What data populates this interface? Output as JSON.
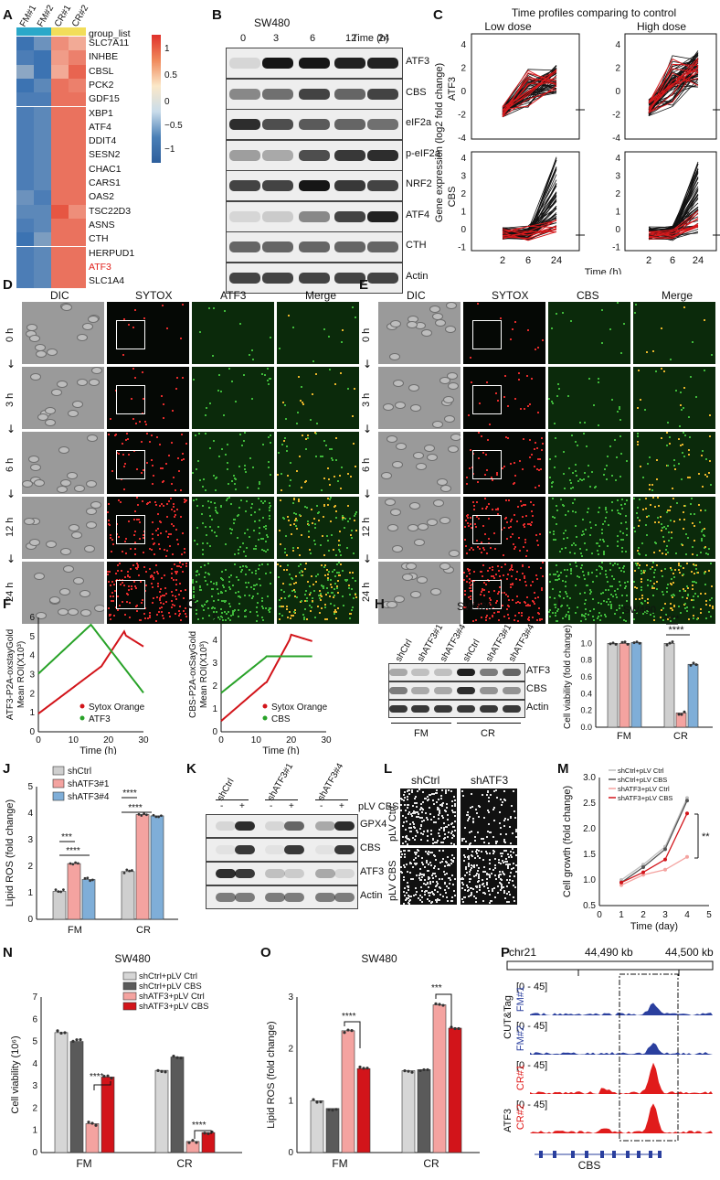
{
  "panels": {
    "A": "A",
    "B": "B",
    "C": "C",
    "D": "D",
    "E": "E",
    "F": "F",
    "G": "G",
    "H": "H",
    "I": "I",
    "J": "J",
    "K": "K",
    "L": "L",
    "M": "M",
    "N": "N",
    "O": "O",
    "P": "P"
  },
  "heatmap": {
    "columns": [
      "FM#1",
      "FM#2",
      "CR#1",
      "CR#2"
    ],
    "group_label": "group_list",
    "genes": [
      "SLC7A11",
      "INHBE",
      "CBSL",
      "PCK2",
      "GDF15",
      "XBP1",
      "ATF4",
      "DDIT4",
      "SESN2",
      "CHAC1",
      "CARS1",
      "OAS2",
      "TSC22D3",
      "ASNS",
      "CTH",
      "HERPUD1",
      "ATF3",
      "SLC1A4"
    ],
    "highlight_gene": "ATF3",
    "highlight_color": "#e0201b",
    "legend_ticks": [
      "1",
      "0.5",
      "0",
      "−0.5",
      "−1"
    ],
    "values": [
      [
        -1.2,
        -0.9,
        0.7,
        0.5
      ],
      [
        -1.1,
        -1.2,
        0.6,
        0.8
      ],
      [
        -0.7,
        -1.2,
        0.5,
        1.0
      ],
      [
        -1.2,
        -1.0,
        0.9,
        0.8
      ],
      [
        -1.1,
        -1.1,
        0.9,
        0.9
      ],
      [
        -1.1,
        -1.0,
        0.9,
        0.9
      ],
      [
        -1.1,
        -1.0,
        0.9,
        0.9
      ],
      [
        -1.1,
        -1.0,
        0.9,
        0.9
      ],
      [
        -1.1,
        -1.0,
        0.9,
        0.9
      ],
      [
        -1.1,
        -1.0,
        0.9,
        0.9
      ],
      [
        -1.1,
        -1.0,
        0.9,
        0.9
      ],
      [
        -0.9,
        -1.1,
        0.9,
        0.9
      ],
      [
        -1.0,
        -1.0,
        1.1,
        0.7
      ],
      [
        -1.1,
        -1.0,
        0.9,
        0.9
      ],
      [
        -1.2,
        -0.8,
        0.9,
        0.9
      ],
      [
        -1.1,
        -1.0,
        0.9,
        0.9
      ],
      [
        -1.1,
        -1.0,
        0.9,
        0.9
      ],
      [
        -1.1,
        -1.0,
        0.9,
        0.9
      ]
    ]
  },
  "blotB": {
    "cell_line": "SW480",
    "time_label": "Time (h)",
    "times": [
      "0",
      "3",
      "6",
      "12",
      "24"
    ],
    "proteins": [
      "ATF3",
      "CBS",
      "eIF2a",
      "p-eIF2a",
      "NRF2",
      "ATF4",
      "CTH",
      "Actin"
    ]
  },
  "panelC": {
    "title": "Time profiles comparing to control",
    "low": "Low dose",
    "high": "High dose",
    "ylabel": "Gene expression (log2 fold change)",
    "top_gene": "ATF3",
    "bottom_gene": "CBS",
    "xlabel": "Time (h)",
    "x_ticks": [
      "2",
      "6",
      "24"
    ],
    "top_yticks": [
      "4",
      "2",
      "0",
      "-2",
      "-4"
    ],
    "bottom_yticks": [
      "4",
      "3",
      "2",
      "1",
      "0",
      "-1"
    ]
  },
  "panelD": {
    "headers": [
      "DIC",
      "SYTOX",
      "ATF3",
      "Merge"
    ],
    "rows": [
      "0 h",
      "3 h",
      "6 h",
      "12 h",
      "24 h"
    ]
  },
  "panelE": {
    "headers": [
      "DIC",
      "SYTOX",
      "CBS",
      "Merge"
    ],
    "rows": [
      "0 h",
      "3 h",
      "6 h",
      "12 h",
      "24 h"
    ]
  },
  "panelF": {
    "ylabel1": "ATF3-P2A-oxstayGold",
    "ylabel2": "Mean ROI(X10³)",
    "xlabel": "Time (h)",
    "legend": [
      "Sytox Orange",
      "ATF3"
    ],
    "colors": [
      "#d2141a",
      "#28a228"
    ],
    "yticks": [
      "6",
      "5",
      "4",
      "3",
      "2",
      "1",
      "0"
    ],
    "xticks": [
      "0",
      "10",
      "20",
      "30"
    ]
  },
  "panelG": {
    "ylabel1": "CBS-P2A-oxSayGold",
    "ylabel2": "Mean ROI(X10³)",
    "xlabel": "Time (h)",
    "legend": [
      "Sytox Orange",
      "CBS"
    ],
    "yticks": [
      "5",
      "4",
      "3",
      "2",
      "1",
      "0"
    ],
    "xticks": [
      "0",
      "10",
      "20",
      "30"
    ]
  },
  "blotH": {
    "cell_line": "SW480",
    "lanes": [
      "shCtrl",
      "shATF3#1",
      "shATF3#4",
      "shCtrl",
      "shATF3#1",
      "shATF3#4"
    ],
    "proteins": [
      "ATF3",
      "CBS",
      "Actin"
    ],
    "groups": [
      "FM",
      "CR"
    ]
  },
  "panelI": {
    "title": "SW480",
    "ylabel": "Cell viability (fold change)",
    "groups": [
      "FM",
      "CR"
    ],
    "yticks": [
      "1.0",
      "0.8",
      "0.6",
      "0.4",
      "0.2",
      "0.0"
    ],
    "sig": [
      "****",
      "****"
    ]
  },
  "panelJ": {
    "ylabel": "Lipid ROS (fold change)",
    "legend": [
      "shCtrl",
      "shATF3#1",
      "shATF3#4"
    ],
    "groups": [
      "FM",
      "CR"
    ],
    "yticks": [
      "5",
      "4",
      "3",
      "2",
      "1",
      "0"
    ],
    "sig": [
      "****",
      "****",
      "***",
      "****"
    ]
  },
  "blotK": {
    "lanes": [
      "shCtrl",
      "shATF3#1",
      "shATF3#4"
    ],
    "signs": [
      "-",
      "+",
      "-",
      "+",
      "-",
      "+"
    ],
    "plv": "pLV CBS",
    "proteins": [
      "GPX4",
      "CBS",
      "ATF3",
      "Actin"
    ]
  },
  "panelL": {
    "cols": [
      "shCtrl",
      "shATF3"
    ],
    "rows": [
      "pLV Ctrl",
      "pLV CBS"
    ]
  },
  "panelM": {
    "ylabel": "Cell growth (fold change)",
    "xlabel": "Time (day)",
    "legend": [
      "shCtrl+pLV Ctrl",
      "shCtrl+pLV CBS",
      "shATF3+pLV Ctrl",
      "shATF3+pLV CBS"
    ],
    "yticks": [
      "3.0",
      "2.5",
      "2.0",
      "1.5",
      "1.0",
      "0.5"
    ],
    "xticks": [
      "0",
      "1",
      "2",
      "3",
      "4",
      "5"
    ],
    "sig": "**"
  },
  "panelN": {
    "title": "SW480",
    "ylabel": "Cell viability (10⁶)",
    "legend": [
      "shCtrl+pLV Ctrl",
      "shCtrl+pLV CBS",
      "shATF3+pLV Ctrl",
      "shATF3+pLV CBS"
    ],
    "groups": [
      "FM",
      "CR"
    ],
    "yticks": [
      "7",
      "6",
      "5",
      "4",
      "3",
      "2",
      "1",
      "0"
    ],
    "sig": [
      "****",
      "****"
    ]
  },
  "panelO": {
    "title": "SW480",
    "ylabel": "Lipid ROS (fold change)",
    "groups": [
      "FM",
      "CR"
    ],
    "yticks": [
      "3",
      "2",
      "1",
      "0"
    ],
    "sig": [
      "****",
      "***"
    ]
  },
  "panelP": {
    "chrom": "chr21",
    "coord1": "44,490 kb",
    "coord2": "44,500 kb",
    "range": "[0 - 45]",
    "tracks": [
      "FM#1",
      "FM#2",
      "CR#1",
      "CR#2"
    ],
    "group_top": "CUT&Tag",
    "group_bottom": "ATF3",
    "gene": "CBS"
  },
  "chart_data": [
    {
      "type": "bar",
      "panel": "I",
      "title": "SW480",
      "ylabel": "Cell viability (fold change)",
      "categories": [
        "FM",
        "CR"
      ],
      "series": [
        {
          "values": [
            1.0,
            1.0
          ]
        },
        {
          "values": [
            1.0,
            0.17
          ]
        },
        {
          "values": [
            1.01,
            0.75
          ]
        }
      ],
      "ylim": [
        0,
        1.2
      ]
    },
    {
      "type": "bar",
      "panel": "J",
      "ylabel": "Lipid ROS (fold change)",
      "categories": [
        "FM",
        "CR"
      ],
      "series": [
        {
          "name": "shCtrl",
          "values": [
            1.05,
            1.8
          ]
        },
        {
          "name": "shATF3#1",
          "values": [
            2.1,
            3.95
          ]
        },
        {
          "name": "shATF3#4",
          "values": [
            1.5,
            3.9
          ]
        }
      ],
      "ylim": [
        0,
        5
      ]
    },
    {
      "type": "line",
      "panel": "M",
      "ylabel": "Cell growth (fold change)",
      "xlabel": "Time (day)",
      "x": [
        1,
        2,
        3,
        4
      ],
      "series": [
        {
          "name": "shCtrl+pLV Ctrl",
          "values": [
            1.0,
            1.3,
            1.65,
            2.6
          ]
        },
        {
          "name": "shCtrl+pLV CBS",
          "values": [
            0.95,
            1.25,
            1.6,
            2.55
          ]
        },
        {
          "name": "shATF3+pLV Ctrl",
          "values": [
            0.9,
            1.1,
            1.2,
            1.45
          ]
        },
        {
          "name": "shATF3+pLV CBS",
          "values": [
            0.95,
            1.15,
            1.4,
            2.3
          ]
        }
      ],
      "xlim": [
        0,
        5
      ],
      "ylim": [
        0.5,
        3.0
      ]
    },
    {
      "type": "bar",
      "panel": "N",
      "title": "SW480",
      "ylabel": "Cell viability (10⁶)",
      "categories": [
        "FM",
        "CR"
      ],
      "series": [
        {
          "name": "shCtrl+pLV Ctrl",
          "values": [
            5.4,
            3.7
          ]
        },
        {
          "name": "shCtrl+pLV CBS",
          "values": [
            5.0,
            4.3
          ]
        },
        {
          "name": "shATF3+pLV Ctrl",
          "values": [
            1.3,
            0.5
          ]
        },
        {
          "name": "shATF3+pLV CBS",
          "values": [
            3.4,
            0.9
          ]
        }
      ],
      "ylim": [
        0,
        7
      ]
    },
    {
      "type": "bar",
      "panel": "O",
      "title": "SW480",
      "ylabel": "Lipid ROS (fold change)",
      "categories": [
        "FM",
        "CR"
      ],
      "series": [
        {
          "name": "shCtrl+pLV Ctrl",
          "values": [
            1.0,
            1.58
          ]
        },
        {
          "name": "shCtrl+pLV CBS",
          "values": [
            0.85,
            1.6
          ]
        },
        {
          "name": "shATF3+pLV Ctrl",
          "values": [
            2.35,
            2.85
          ]
        },
        {
          "name": "shATF3+pLV CBS",
          "values": [
            1.62,
            2.4
          ]
        }
      ],
      "ylim": [
        0,
        3
      ]
    }
  ]
}
